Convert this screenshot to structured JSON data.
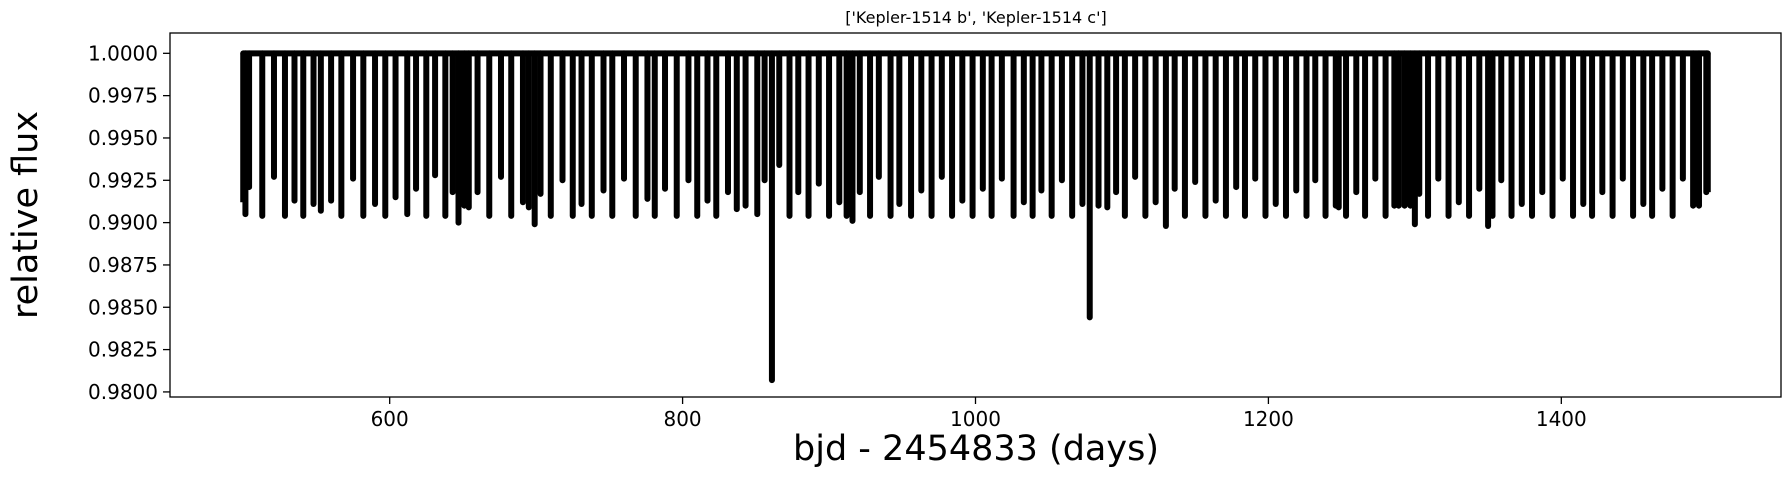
{
  "chart_data": {
    "type": "line",
    "title": "['Kepler-1514 b', 'Kepler-1514 c']",
    "xlabel": "bjd - 2454833 (days)",
    "ylabel": "relative flux",
    "xlim": [
      450,
      1550
    ],
    "ylim": [
      0.9797,
      1.0012
    ],
    "xticks": [
      600,
      800,
      1000,
      1200,
      1400
    ],
    "xtick_labels": [
      "600",
      "800",
      "1000",
      "1200",
      "1400"
    ],
    "yticks": [
      0.98,
      0.9825,
      0.985,
      0.9875,
      0.99,
      0.9925,
      0.995,
      0.9975,
      1.0
    ],
    "ytick_labels": [
      "0.9800",
      "0.9825",
      "0.9850",
      "0.9875",
      "0.9900",
      "0.9925",
      "0.9950",
      "0.9975",
      "1.0000"
    ],
    "grid": false,
    "legend": "none",
    "line_color": "#000000",
    "series": [
      {
        "baseline": 1.0,
        "x_range": [
          500,
          1500
        ],
        "transits": [
          [
            501.5,
            0.9905
          ],
          [
            504.0,
            0.9921
          ],
          [
            513.0,
            0.9904
          ],
          [
            521.0,
            0.9927
          ],
          [
            528.5,
            0.9904
          ],
          [
            535.0,
            0.9913
          ],
          [
            541.0,
            0.9904
          ],
          [
            548.0,
            0.9911
          ],
          [
            553.0,
            0.9907
          ],
          [
            560.0,
            0.9913
          ],
          [
            567.0,
            0.9904
          ],
          [
            575.0,
            0.9926
          ],
          [
            582.0,
            0.9904
          ],
          [
            590.0,
            0.9911
          ],
          [
            597.0,
            0.9904
          ],
          [
            604.0,
            0.9915
          ],
          [
            612.0,
            0.9905
          ],
          [
            618.0,
            0.992
          ],
          [
            625.0,
            0.9904
          ],
          [
            631.0,
            0.9928
          ],
          [
            638.0,
            0.9904
          ],
          [
            643.0,
            0.9918
          ],
          [
            647.0,
            0.99
          ],
          [
            651.0,
            0.991
          ],
          [
            654.0,
            0.9909
          ],
          [
            660.0,
            0.9918
          ],
          [
            668.0,
            0.9904
          ],
          [
            676.0,
            0.9927
          ],
          [
            683.0,
            0.9904
          ],
          [
            691.0,
            0.9912
          ],
          [
            695.0,
            0.9909
          ],
          [
            699.0,
            0.9899
          ],
          [
            703.0,
            0.9917
          ],
          [
            710.0,
            0.9904
          ],
          [
            718.0,
            0.9925
          ],
          [
            725.0,
            0.9904
          ],
          [
            731.0,
            0.9911
          ],
          [
            738.0,
            0.9904
          ],
          [
            746.0,
            0.9919
          ],
          [
            752.0,
            0.9904
          ],
          [
            760.0,
            0.9926
          ],
          [
            768.0,
            0.9904
          ],
          [
            776.0,
            0.9914
          ],
          [
            781.0,
            0.9904
          ],
          [
            788.0,
            0.992
          ],
          [
            796.0,
            0.9904
          ],
          [
            804.0,
            0.9925
          ],
          [
            810.0,
            0.9904
          ],
          [
            817.0,
            0.9913
          ],
          [
            823.0,
            0.9904
          ],
          [
            831.0,
            0.9918
          ],
          [
            837.0,
            0.9908
          ],
          [
            843.0,
            0.991
          ],
          [
            851.0,
            0.9905
          ],
          [
            856.0,
            0.9925
          ],
          [
            861.0,
            0.9807
          ],
          [
            866.0,
            0.9934
          ],
          [
            873.0,
            0.9904
          ],
          [
            879.0,
            0.9918
          ],
          [
            886.0,
            0.9904
          ],
          [
            893.0,
            0.9923
          ],
          [
            900.0,
            0.9904
          ],
          [
            907.0,
            0.9912
          ],
          [
            912.0,
            0.9904
          ],
          [
            916.0,
            0.9901
          ],
          [
            921.0,
            0.9918
          ],
          [
            928.0,
            0.9904
          ],
          [
            934.0,
            0.9927
          ],
          [
            942.0,
            0.9904
          ],
          [
            948.0,
            0.9911
          ],
          [
            956.0,
            0.9904
          ],
          [
            963.0,
            0.9919
          ],
          [
            970.0,
            0.9904
          ],
          [
            977.0,
            0.9927
          ],
          [
            984.0,
            0.9904
          ],
          [
            991.0,
            0.9913
          ],
          [
            998.0,
            0.9904
          ],
          [
            1005.0,
            0.992
          ],
          [
            1011.0,
            0.9904
          ],
          [
            1018.0,
            0.9926
          ],
          [
            1026.0,
            0.9904
          ],
          [
            1033.0,
            0.9912
          ],
          [
            1039.0,
            0.9904
          ],
          [
            1045.0,
            0.9919
          ],
          [
            1052.0,
            0.9904
          ],
          [
            1059.0,
            0.9925
          ],
          [
            1066.0,
            0.9904
          ],
          [
            1073.0,
            0.9911
          ],
          [
            1078.0,
            0.9844
          ],
          [
            1084.0,
            0.991
          ],
          [
            1090.0,
            0.9909
          ],
          [
            1096.0,
            0.9918
          ],
          [
            1102.0,
            0.9904
          ],
          [
            1109.0,
            0.9927
          ],
          [
            1116.0,
            0.9904
          ],
          [
            1123.0,
            0.9912
          ],
          [
            1130.0,
            0.9898
          ],
          [
            1136.0,
            0.992
          ],
          [
            1143.0,
            0.9904
          ],
          [
            1150.0,
            0.9924
          ],
          [
            1157.0,
            0.9904
          ],
          [
            1164.0,
            0.9913
          ],
          [
            1171.0,
            0.9904
          ],
          [
            1178.0,
            0.9921
          ],
          [
            1184.0,
            0.9904
          ],
          [
            1191.0,
            0.9926
          ],
          [
            1198.0,
            0.9904
          ],
          [
            1205.0,
            0.9911
          ],
          [
            1212.0,
            0.9904
          ],
          [
            1219.0,
            0.9919
          ],
          [
            1226.0,
            0.9904
          ],
          [
            1232.0,
            0.9925
          ],
          [
            1239.0,
            0.9904
          ],
          [
            1246.0,
            0.991
          ],
          [
            1248.0,
            0.9909
          ],
          [
            1253.0,
            0.9904
          ],
          [
            1260.0,
            0.9918
          ],
          [
            1266.0,
            0.9904
          ],
          [
            1273.0,
            0.9926
          ],
          [
            1280.0,
            0.9904
          ],
          [
            1286.0,
            0.991
          ],
          [
            1289.0,
            0.991
          ],
          [
            1293.0,
            0.991
          ],
          [
            1297.0,
            0.991
          ],
          [
            1300.0,
            0.9899
          ],
          [
            1303.0,
            0.9917
          ],
          [
            1309.0,
            0.9904
          ],
          [
            1316.0,
            0.9926
          ],
          [
            1323.0,
            0.9904
          ],
          [
            1330.0,
            0.9912
          ],
          [
            1337.0,
            0.9904
          ],
          [
            1344.0,
            0.992
          ],
          [
            1350.0,
            0.9898
          ],
          [
            1353.0,
            0.9904
          ],
          [
            1359.0,
            0.9925
          ],
          [
            1366.0,
            0.9904
          ],
          [
            1373.0,
            0.9911
          ],
          [
            1380.0,
            0.9904
          ],
          [
            1387.0,
            0.9918
          ],
          [
            1394.0,
            0.9904
          ],
          [
            1401.0,
            0.9926
          ],
          [
            1408.0,
            0.9904
          ],
          [
            1415.0,
            0.9911
          ],
          [
            1421.0,
            0.9904
          ],
          [
            1428.0,
            0.9918
          ],
          [
            1435.0,
            0.9904
          ],
          [
            1442.0,
            0.9926
          ],
          [
            1449.0,
            0.9904
          ],
          [
            1456.0,
            0.9911
          ],
          [
            1462.0,
            0.9904
          ],
          [
            1469.0,
            0.992
          ],
          [
            1476.0,
            0.9904
          ],
          [
            1483.0,
            0.9926
          ],
          [
            1490.0,
            0.991
          ],
          [
            1494.0,
            0.991
          ],
          [
            1499.0,
            0.9918
          ]
        ]
      }
    ]
  }
}
